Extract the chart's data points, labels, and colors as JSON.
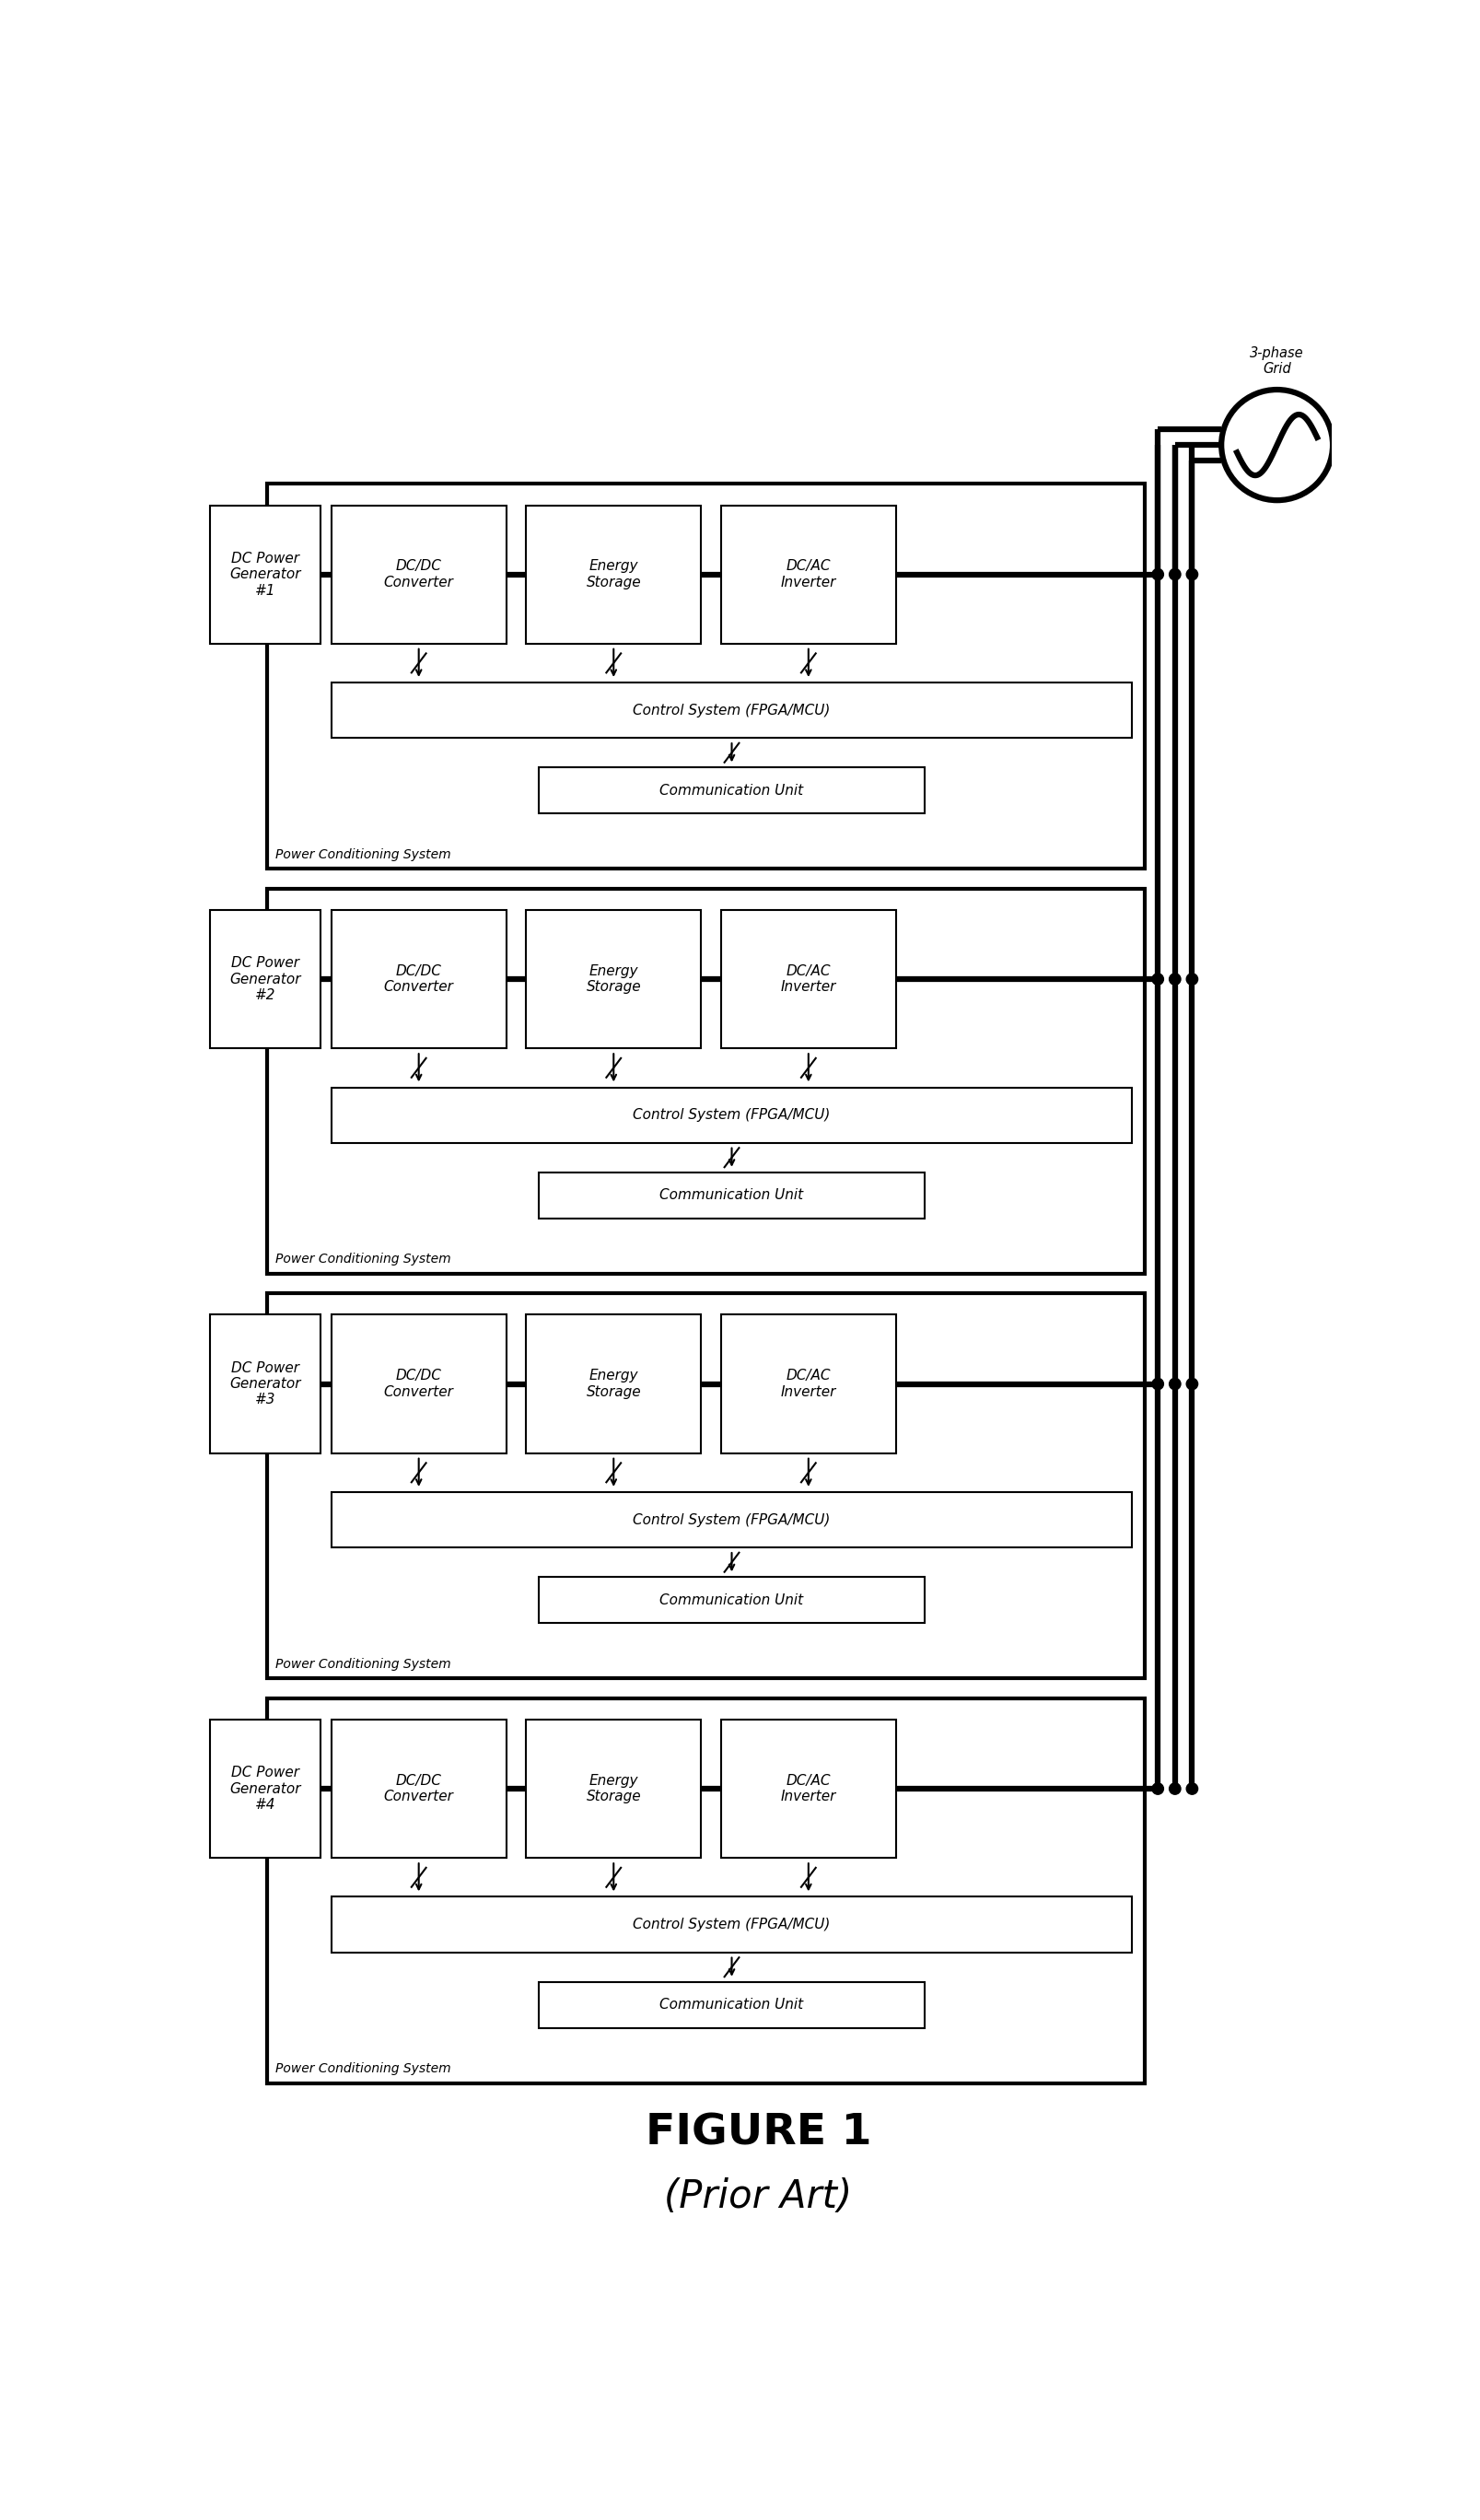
{
  "title1": "FIGURE 1",
  "title2": "(Prior Art)",
  "generator_labels": [
    "DC Power\nGenerator\n#1",
    "DC Power\nGenerator\n#2",
    "DC Power\nGenerator\n#3",
    "DC Power\nGenerator\n#4"
  ],
  "dc_dc_label": "DC/DC\nConverter",
  "energy_label": "Energy\nStorage",
  "dc_ac_label": "DC/AC\nInverter",
  "control_label": "Control System (FPGA/MCU)",
  "comm_label": "Communication Unit",
  "pcs_label": "Power Conditioning System",
  "grid_label": "3-phase\nGrid",
  "bg_color": "#ffffff",
  "lw_thin": 1.5,
  "lw_thick": 4.5,
  "lw_outer": 3.0,
  "fontsize_inner": 11,
  "fontsize_pcs": 10,
  "fontsize_title1": 34,
  "fontsize_title2": 30
}
